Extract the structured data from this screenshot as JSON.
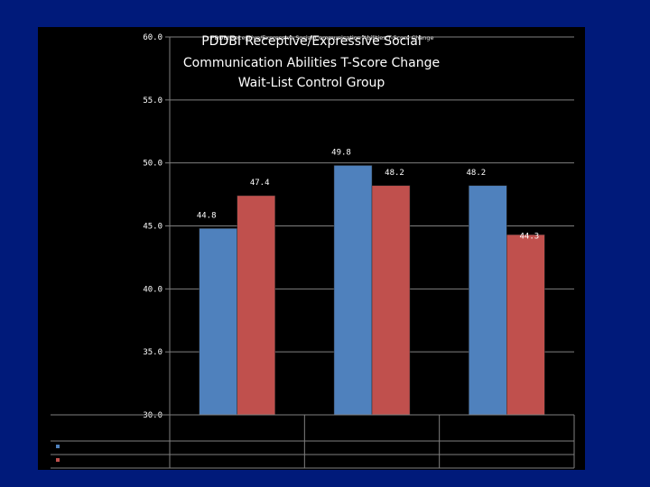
{
  "slide": {
    "background_color": "#001a7a",
    "panel_color": "#000000"
  },
  "chart_data": {
    "type": "bar",
    "title_lines": [
      "PDDBI Receptive/Expressive Social",
      "Communication Abilities T-Score Change",
      "Wait-List Control Group"
    ],
    "title_overlay": "PDDBI Receptive/Expressive Social Communication Abilities T-Score Change",
    "categories": [
      "",
      "",
      ""
    ],
    "series": [
      {
        "color": "#4f81bd",
        "values": [
          44.8,
          49.8,
          48.2
        ]
      },
      {
        "color": "#c0504d",
        "values": [
          47.4,
          48.2,
          44.3
        ]
      }
    ],
    "value_labels": [
      [
        "44.8",
        "49.8",
        "48.2"
      ],
      [
        "47.4",
        "48.2",
        "44.3"
      ]
    ],
    "ylim": [
      30.0,
      60.0
    ],
    "yticks": [
      "30.0",
      "35.0",
      "40.0",
      "45.0",
      "50.0",
      "55.0",
      "60.0"
    ],
    "grid": true,
    "legend": "data table below plot",
    "xlabel": "",
    "ylabel": ""
  }
}
